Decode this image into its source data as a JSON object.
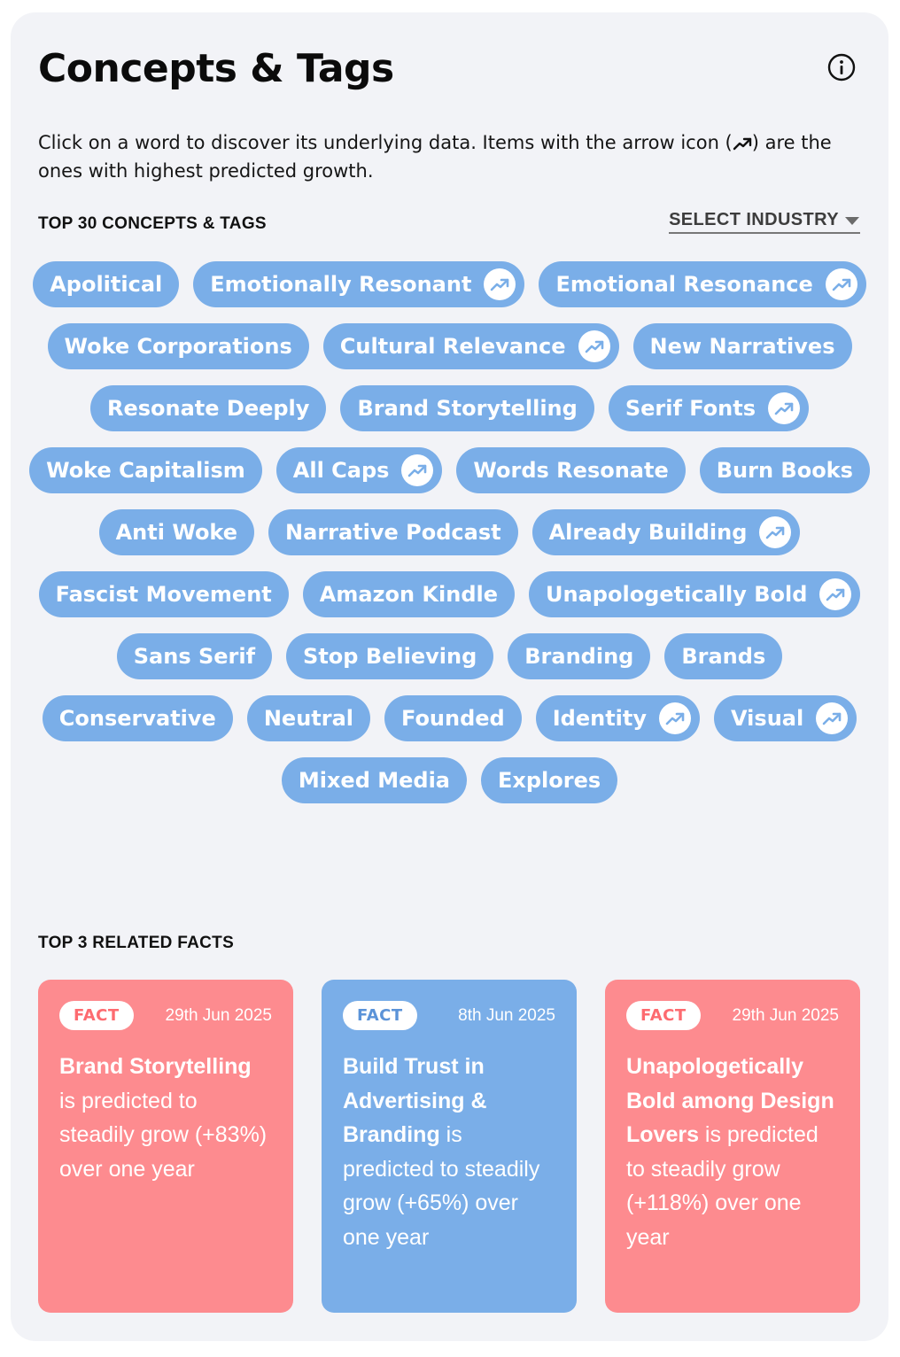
{
  "header": {
    "title": "Concepts & Tags",
    "info_icon": "info-circle-icon"
  },
  "description": {
    "before_icon": "Click on a word to discover its underlying data. Items with the arrow icon (",
    "icon": "trending-up-icon",
    "after_icon": ") are the ones with highest predicted growth."
  },
  "top_tags": {
    "label": "TOP 30 CONCEPTS & TAGS",
    "select_industry": {
      "label": "SELECT INDUSTRY",
      "icon": "caret-down-icon"
    },
    "tags": [
      {
        "label": "Apolitical",
        "trending": false
      },
      {
        "label": "Emotionally Resonant",
        "trending": true
      },
      {
        "label": "Emotional Resonance",
        "trending": true
      },
      {
        "label": "Woke Corporations",
        "trending": false
      },
      {
        "label": "Cultural Relevance",
        "trending": true
      },
      {
        "label": "New Narratives",
        "trending": false
      },
      {
        "label": "Resonate Deeply",
        "trending": false
      },
      {
        "label": "Brand Storytelling",
        "trending": false
      },
      {
        "label": "Serif Fonts",
        "trending": true
      },
      {
        "label": "Woke Capitalism",
        "trending": false
      },
      {
        "label": "All Caps",
        "trending": true
      },
      {
        "label": "Words Resonate",
        "trending": false
      },
      {
        "label": "Burn Books",
        "trending": false
      },
      {
        "label": "Anti Woke",
        "trending": false
      },
      {
        "label": "Narrative Podcast",
        "trending": false
      },
      {
        "label": "Already Building",
        "trending": true
      },
      {
        "label": "Fascist Movement",
        "trending": false
      },
      {
        "label": "Amazon Kindle",
        "trending": false
      },
      {
        "label": "Unapologetically Bold",
        "trending": true
      },
      {
        "label": "Sans Serif",
        "trending": false
      },
      {
        "label": "Stop Believing",
        "trending": false
      },
      {
        "label": "Branding",
        "trending": false
      },
      {
        "label": "Brands",
        "trending": false
      },
      {
        "label": "Conservative",
        "trending": false
      },
      {
        "label": "Neutral",
        "trending": false
      },
      {
        "label": "Founded",
        "trending": false
      },
      {
        "label": "Identity",
        "trending": true
      },
      {
        "label": "Visual",
        "trending": true
      },
      {
        "label": "Mixed Media",
        "trending": false
      },
      {
        "label": "Explores",
        "trending": false
      }
    ]
  },
  "related_facts": {
    "label": "TOP 3 RELATED FACTS",
    "facts": [
      {
        "badge": "FACT",
        "date": "29th Jun 2025",
        "subject": "Brand Storytelling",
        "text": " is predicted to steadily grow (+83%) over one year",
        "color": "#fd8b8f"
      },
      {
        "badge": "FACT",
        "date": "8th Jun 2025",
        "subject": "Build Trust in Advertising & Branding",
        "text": " is predicted to steadily grow (+65%) over one year",
        "color": "#7aaee8"
      },
      {
        "badge": "FACT",
        "date": "29th Jun 2025",
        "subject": "Unapologetically Bold among Design Lovers",
        "text": " is predicted to steadily grow (+118%) over one year",
        "color": "#fd8b8f"
      }
    ]
  },
  "colors": {
    "panel_bg": "#f2f3f7",
    "tag_bg": "#7aaee8",
    "fact_red": "#fd8b8f",
    "fact_blue": "#7aaee8"
  }
}
